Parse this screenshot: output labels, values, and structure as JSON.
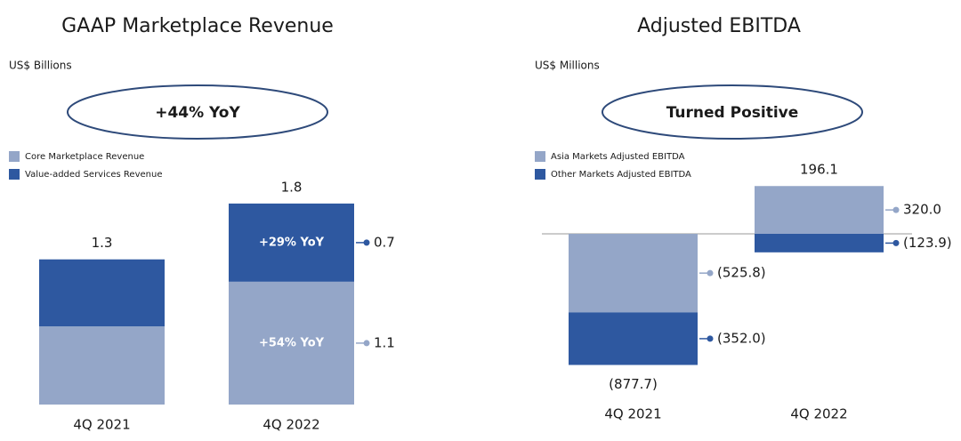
{
  "chart_data": [
    {
      "type": "bar",
      "stacked": true,
      "title": "GAAP Marketplace Revenue",
      "subtitle": "US$ Billions",
      "highlight": "+44% YoY",
      "categories": [
        "4Q 2021",
        "4Q 2022"
      ],
      "series": [
        {
          "name": "Core Marketplace Revenue",
          "color": "#94a6c8",
          "values": [
            0.7,
            1.1
          ],
          "value_labels": [
            null,
            "1.1"
          ],
          "growth": [
            null,
            "+54% YoY"
          ]
        },
        {
          "name": "Value-added Services Revenue",
          "color": "#2e58a0",
          "values": [
            0.6,
            0.7
          ],
          "value_labels": [
            null,
            "0.7"
          ],
          "growth": [
            null,
            "+29% YoY"
          ]
        }
      ],
      "totals": [
        1.3,
        1.8
      ]
    },
    {
      "type": "bar",
      "stacked": true,
      "title": "Adjusted EBITDA",
      "subtitle": "US$ Millions",
      "highlight": "Turned Positive",
      "categories": [
        "4Q 2021",
        "4Q 2022"
      ],
      "series": [
        {
          "name": "Asia Markets Adjusted EBITDA",
          "color": "#94a6c8",
          "values": [
            -525.8,
            320.0
          ],
          "value_labels": [
            "(525.8)",
            "320.0"
          ]
        },
        {
          "name": "Other Markets Adjusted EBITDA",
          "color": "#2e58a0",
          "values": [
            -352.0,
            -123.9
          ],
          "value_labels": [
            "(352.0)",
            "(123.9)"
          ]
        }
      ],
      "totals": [
        -877.7,
        196.1
      ],
      "total_labels": [
        "(877.7)",
        "196.1"
      ]
    }
  ]
}
